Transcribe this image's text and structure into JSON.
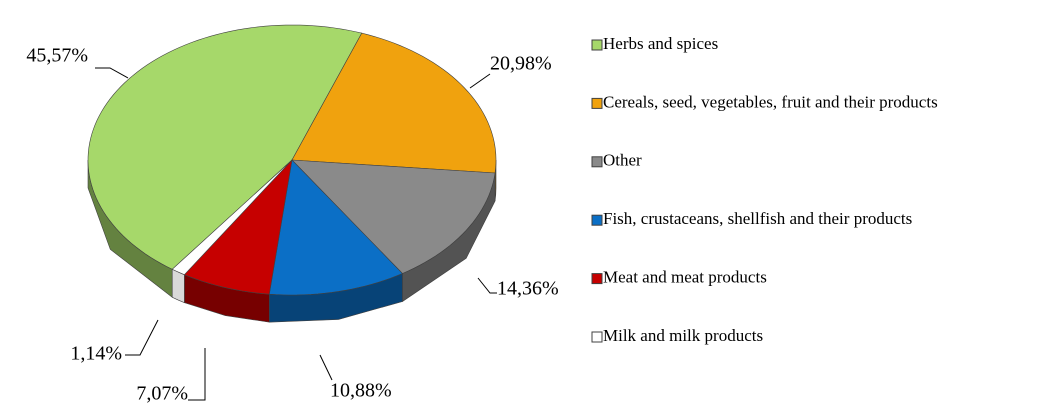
{
  "chart_data": {
    "type": "pie",
    "categories": [
      "Herbs and spices",
      "Cereals, seed, vegetables, fruit and their products",
      "Other",
      "Fish, crustaceans, shellfish and their products",
      "Meat and meat products",
      "Milk and milk products"
    ],
    "values": [
      45.57,
      20.98,
      14.36,
      10.88,
      7.07,
      1.14
    ],
    "value_labels": [
      "45,57%",
      "20,98%",
      "14,36%",
      "10,88%",
      "7,07%",
      "1,14%"
    ],
    "colors": [
      "#a6d86a",
      "#f0a20e",
      "#8a8a8a",
      "#0b6fc6",
      "#c60000",
      "#ffffff"
    ],
    "legend": "right"
  }
}
